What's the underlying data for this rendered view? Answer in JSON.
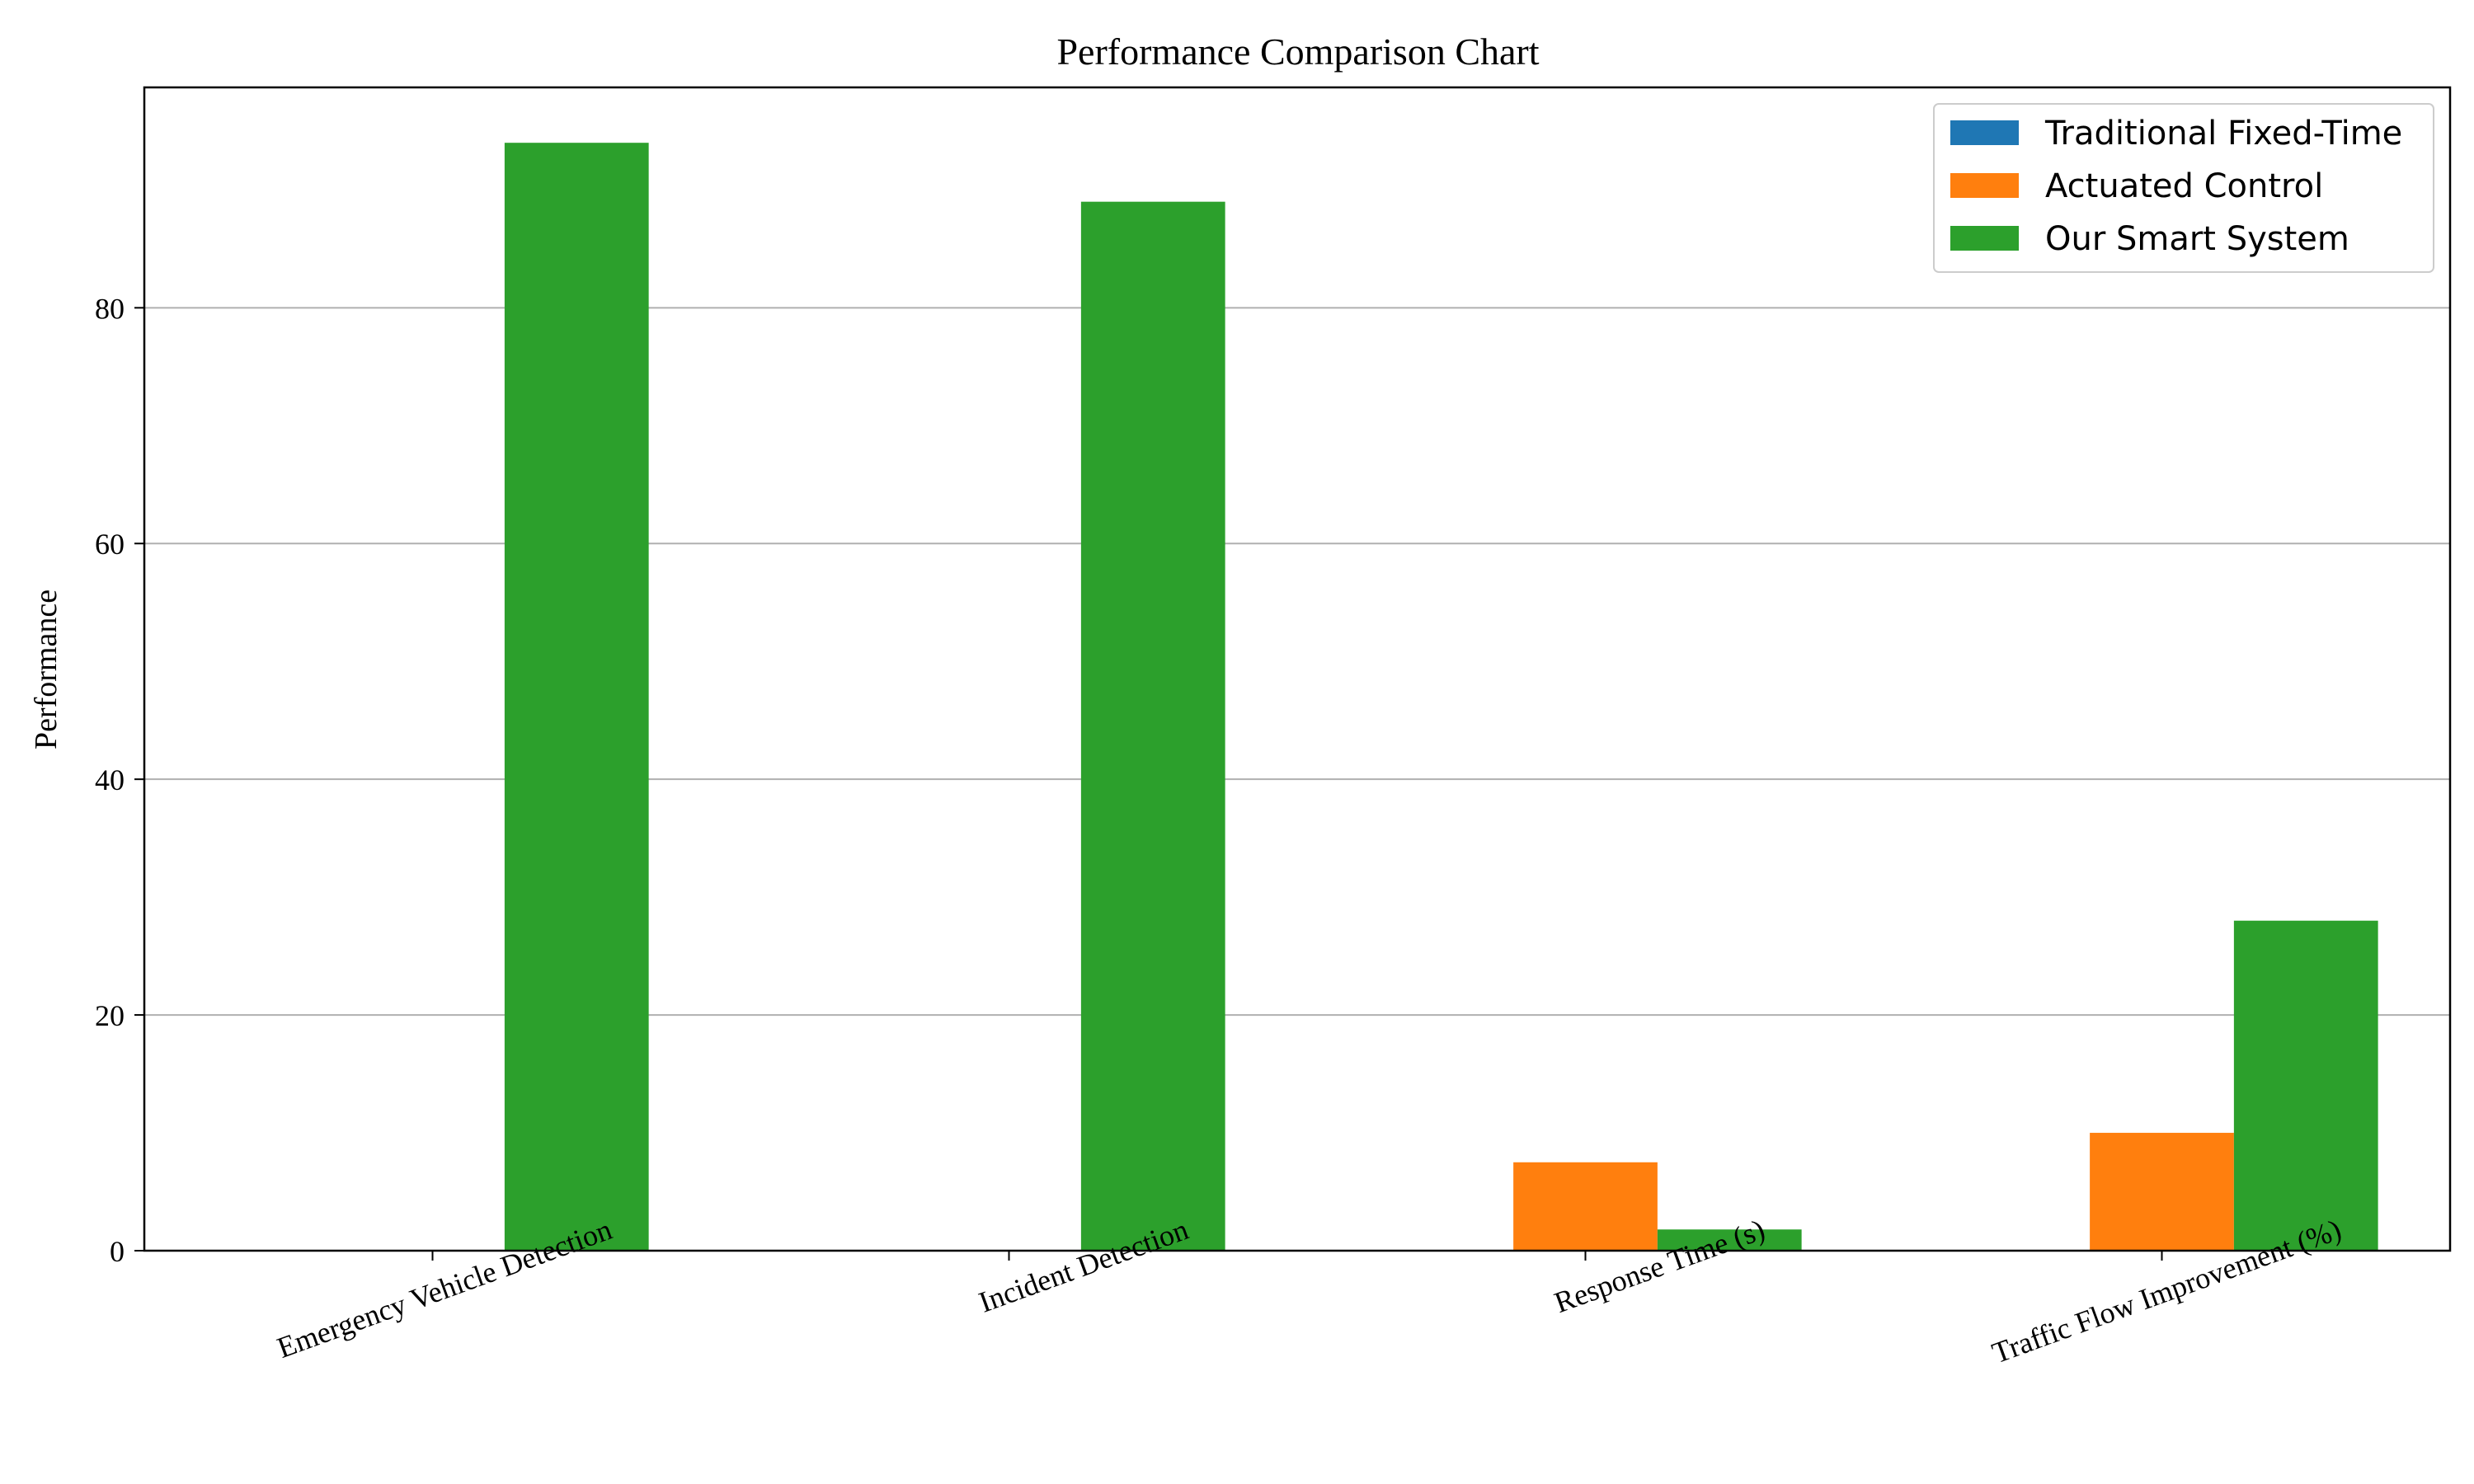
{
  "chart_data": {
    "type": "bar",
    "title": "Performance Comparison Chart",
    "xlabel": "",
    "ylabel": "Performance",
    "categories": [
      "Emergency Vehicle Detection",
      "Incident Detection",
      "Response Time (s)",
      "Traffic Flow Improvement (%)"
    ],
    "series": [
      {
        "name": "Traditional Fixed-Time",
        "color": "#1f77b4",
        "values": [
          0,
          0,
          0,
          0
        ]
      },
      {
        "name": "Actuated Control",
        "color": "#ff7f0e",
        "values": [
          0,
          0,
          7.5,
          10
        ]
      },
      {
        "name": "Our Smart System",
        "color": "#2ca02c",
        "values": [
          94,
          89,
          1.8,
          28
        ]
      }
    ],
    "ylim": [
      0,
      98.7
    ],
    "yticks": [
      "0",
      "20",
      "40",
      "60",
      "80"
    ],
    "grid": "y",
    "legend_position": "top-right"
  }
}
